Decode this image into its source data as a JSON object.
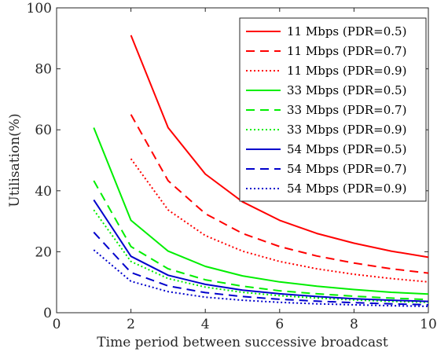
{
  "chart_data": {
    "type": "line",
    "xlabel": "Time period between successive broadcast",
    "ylabel": "Utilisation(%)",
    "xlim": [
      0,
      10
    ],
    "ylim": [
      0,
      100
    ],
    "xticks": [
      0,
      2,
      4,
      6,
      8,
      10
    ],
    "yticks": [
      0,
      20,
      40,
      60,
      80,
      100
    ],
    "grid": false,
    "legend_position": "top-right",
    "series": [
      {
        "name": "11 Mbps (PDR=0.5)",
        "color": "#ff0000",
        "style": "solid",
        "x": [
          2,
          3,
          4,
          5,
          6,
          7,
          8,
          9,
          10
        ],
        "values": [
          91,
          60.7,
          45.5,
          36.4,
          30.3,
          26.0,
          22.8,
          20.2,
          18.2
        ]
      },
      {
        "name": "11 Mbps (PDR=0.7)",
        "color": "#ff0000",
        "style": "dashed",
        "x": [
          2,
          3,
          4,
          5,
          6,
          7,
          8,
          9,
          10
        ],
        "values": [
          65,
          43.3,
          32.5,
          26.0,
          21.7,
          18.6,
          16.3,
          14.4,
          13.0
        ]
      },
      {
        "name": "11 Mbps (PDR=0.9)",
        "color": "#ff0000",
        "style": "dotted",
        "x": [
          2,
          3,
          4,
          5,
          6,
          7,
          8,
          9,
          10
        ],
        "values": [
          50.5,
          33.7,
          25.3,
          20.2,
          16.8,
          14.4,
          12.6,
          11.2,
          10.1
        ]
      },
      {
        "name": "33 Mbps (PDR=0.5)",
        "color": "#00ee00",
        "style": "solid",
        "x": [
          1,
          2,
          3,
          4,
          5,
          6,
          7,
          8,
          9,
          10
        ],
        "values": [
          60.7,
          30.3,
          20.2,
          15.2,
          12.1,
          10.1,
          8.7,
          7.6,
          6.7,
          6.1
        ]
      },
      {
        "name": "33 Mbps (PDR=0.7)",
        "color": "#00ee00",
        "style": "dashed",
        "x": [
          1,
          2,
          3,
          4,
          5,
          6,
          7,
          8,
          9,
          10
        ],
        "values": [
          43.3,
          21.7,
          14.4,
          10.8,
          8.7,
          7.2,
          6.2,
          5.4,
          4.8,
          4.3
        ]
      },
      {
        "name": "33 Mbps (PDR=0.9)",
        "color": "#00ee00",
        "style": "dotted",
        "x": [
          1,
          2,
          3,
          4,
          5,
          6,
          7,
          8,
          9,
          10
        ],
        "values": [
          33.7,
          16.8,
          11.2,
          8.4,
          6.7,
          5.6,
          4.8,
          4.2,
          3.7,
          3.4
        ]
      },
      {
        "name": "54 Mbps (PDR=0.5)",
        "color": "#0000cc",
        "style": "solid",
        "x": [
          1,
          2,
          3,
          4,
          5,
          6,
          7,
          8,
          9,
          10
        ],
        "values": [
          37.0,
          18.5,
          12.3,
          9.3,
          7.4,
          6.2,
          5.3,
          4.6,
          4.1,
          3.7
        ]
      },
      {
        "name": "54 Mbps (PDR=0.7)",
        "color": "#0000cc",
        "style": "dashed",
        "x": [
          1,
          2,
          3,
          4,
          5,
          6,
          7,
          8,
          9,
          10
        ],
        "values": [
          26.4,
          13.2,
          8.8,
          6.6,
          5.3,
          4.4,
          3.8,
          3.3,
          2.9,
          2.6
        ]
      },
      {
        "name": "54 Mbps (PDR=0.9)",
        "color": "#0000cc",
        "style": "dotted",
        "x": [
          1,
          2,
          3,
          4,
          5,
          6,
          7,
          8,
          9,
          10
        ],
        "values": [
          20.6,
          10.3,
          6.9,
          5.1,
          4.1,
          3.4,
          2.9,
          2.6,
          2.3,
          2.1
        ]
      }
    ]
  }
}
